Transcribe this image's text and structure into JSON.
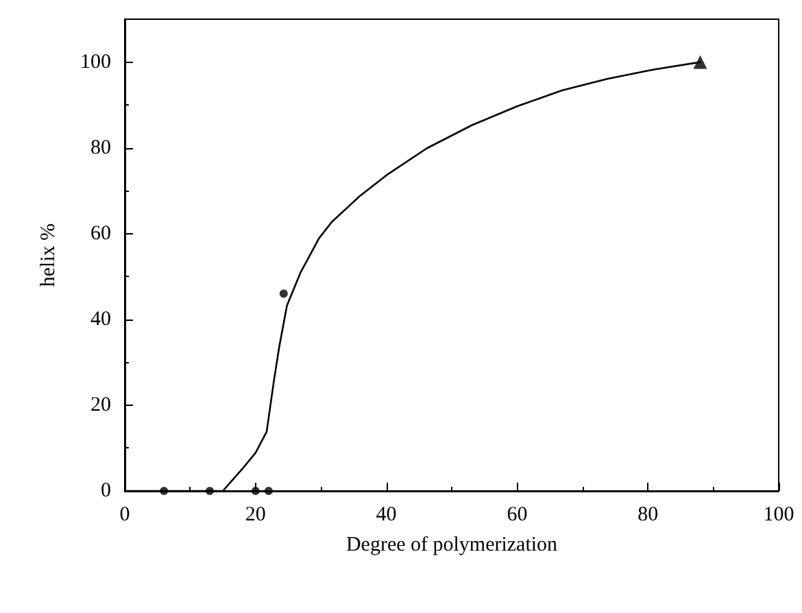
{
  "chart_data": {
    "type": "scatter",
    "xlabel": "Degree of polymerization",
    "ylabel": "helix %",
    "xlim": [
      0,
      100
    ],
    "xticks": [
      0,
      20,
      40,
      60,
      80,
      100
    ],
    "ylim": [
      0,
      110
    ],
    "yticks": [
      0,
      20,
      40,
      60,
      80,
      100
    ],
    "grid": false,
    "series": [
      {
        "type": "line",
        "color": "#000000",
        "marker": "none",
        "line_style": "solid",
        "x": [
          0,
          15,
          17.9,
          20,
          21.7,
          22.8,
          23.6,
          24.8,
          26.9,
          29.7,
          31.7,
          35.9,
          40,
          46.2,
          53.1,
          60,
          66.9,
          73.8,
          80.7,
          88
        ],
        "values": [
          0,
          0,
          5,
          8.9,
          13.8,
          25.6,
          33.4,
          43.2,
          51,
          58.9,
          62.8,
          68.7,
          73.6,
          79.9,
          85.3,
          89.7,
          93.4,
          96.1,
          98.2,
          100
        ]
      },
      {
        "color": "#000000",
        "marker": "circle",
        "x": [
          6,
          13,
          20,
          22,
          24.3
        ],
        "values": [
          0,
          0,
          0,
          0,
          46
        ]
      },
      {
        "color": "#000000",
        "marker": "triangle",
        "x": [
          88
        ],
        "values": [
          100
        ]
      }
    ]
  }
}
